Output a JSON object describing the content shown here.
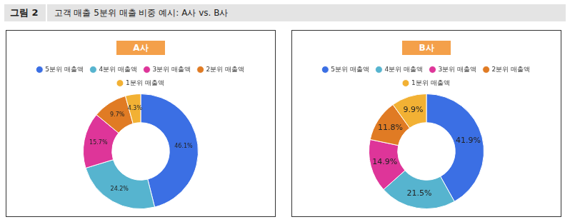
{
  "figure": {
    "label": "그림 2",
    "title": "고객 매출 5분위 매출 비중 예시: A사 vs. B사"
  },
  "chart_data": [
    {
      "type": "doughnut",
      "title": "A사",
      "categories": [
        "5분위 매출액",
        "4분위 매출액",
        "3분위 매출액",
        "2분위 매출액",
        "1분위 매출액"
      ],
      "values": [
        46.1,
        24.2,
        15.7,
        9.7,
        4.3
      ],
      "value_labels": [
        "46.1%",
        "24.2%",
        "15.7%",
        "9.7%",
        "4.3%"
      ],
      "colors": [
        "#3b6fe4",
        "#56b4cf",
        "#de3599",
        "#e07b24",
        "#f2b134"
      ],
      "legend": "top",
      "data_labels": true
    },
    {
      "type": "doughnut",
      "title": "B사",
      "categories": [
        "5분위 매출액",
        "4분위 매출액",
        "3분위 매출액",
        "2분위 매출액",
        "1분위 매출액"
      ],
      "values": [
        41.9,
        21.5,
        14.9,
        11.8,
        9.9
      ],
      "value_labels": [
        "41.9%",
        "21.5%",
        "14.9%",
        "11.8%",
        "9.9%"
      ],
      "colors": [
        "#3b6fe4",
        "#56b4cf",
        "#de3599",
        "#e07b24",
        "#f2b134"
      ],
      "legend": "top",
      "data_labels": true
    }
  ]
}
